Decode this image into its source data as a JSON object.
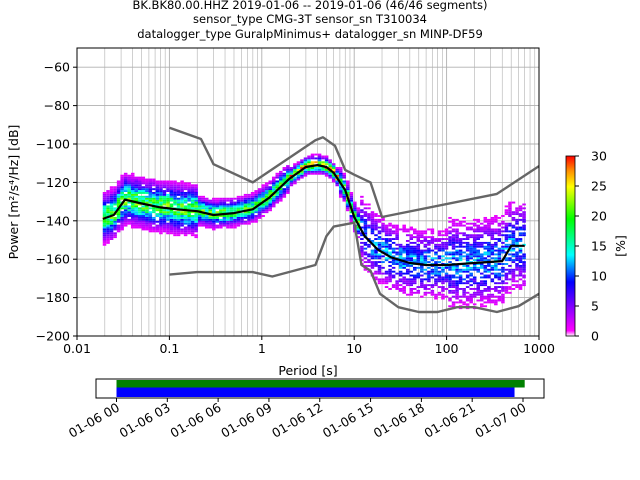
{
  "title_lines": [
    "BK.BK80.00.HHZ   2019-01-06 -- 2019-01-06  (46/46 segments)",
    "sensor_type CMG-3T sensor_sn T310034",
    "datalogger_type GuralpMinimus+ datalogger_sn MINP-DF59"
  ],
  "chart_data": [
    {
      "type": "heatmap",
      "xlabel": "Period [s]",
      "ylabel": "Power [m²/s⁴/Hz] [dB]",
      "xscale": "log",
      "xlim": [
        0.01,
        1000
      ],
      "ylim": [
        -200,
        -50
      ],
      "x_ticks": [
        0.01,
        0.1,
        1,
        10,
        100,
        1000
      ],
      "x_tick_labels": [
        "0.01",
        "0.1",
        "1",
        "10",
        "100",
        "1000"
      ],
      "y_ticks": [
        -200,
        -180,
        -160,
        -140,
        -120,
        -100,
        -80,
        -60
      ],
      "y_tick_labels": [
        "−200",
        "−180",
        "−160",
        "−140",
        "−120",
        "−100",
        "−80",
        "−60"
      ],
      "grid": true,
      "colorbar": {
        "label": "[%]",
        "range": [
          0,
          30
        ],
        "ticks": [
          0,
          5,
          10,
          15,
          20,
          25,
          30
        ],
        "colormap": "pqlx (white-magenta-blue-cyan-green-yellow-orange-red)"
      },
      "series": [
        {
          "color": "#666666",
          "x": [
            0.1,
            0.22,
            0.3,
            0.8,
            3.8,
            4.6,
            6.2,
            8.0,
            10.0,
            15.0,
            20.0,
            350,
            1000
          ],
          "y": [
            -91.5,
            -97.4,
            -110.5,
            -120,
            -98,
            -96.5,
            -101,
            -113.5,
            -116,
            -120,
            -138,
            -126,
            -111.5
          ]
        },
        {
          "color": "#666666",
          "x": [
            0.1,
            0.2,
            0.8,
            1.3,
            3.8,
            5.0,
            6.0,
            10.0,
            12.0,
            15.0,
            19.0,
            30.0,
            50.0,
            80.0,
            130,
            200,
            350,
            600,
            1000
          ],
          "y": [
            -168,
            -166.7,
            -166.7,
            -169,
            -163,
            -148,
            -143,
            -141,
            -163,
            -166,
            -178,
            -185,
            -187.5,
            -187.5,
            -185,
            -185,
            -187.5,
            -184.5,
            -178
          ]
        },
        {
          "color": "#000000",
          "x": [
            0.019,
            0.025,
            0.033,
            0.05,
            0.08,
            0.12,
            0.2,
            0.3,
            0.5,
            0.8,
            1.2,
            2.0,
            3.0,
            4.0,
            5.0,
            6.0,
            8.0,
            10.0,
            13.0,
            18.0,
            25.0,
            40.0,
            60.0,
            100,
            200,
            400,
            500,
            700
          ],
          "y": [
            -139,
            -137,
            -129,
            -131,
            -133,
            -134,
            -135,
            -137,
            -136,
            -134,
            -128,
            -118,
            -112,
            -111,
            -112,
            -115,
            -124,
            -138,
            -148,
            -155,
            -159,
            -162,
            -163,
            -163,
            -162,
            -161,
            -153,
            -153
          ]
        }
      ]
    },
    {
      "type": "bar",
      "x_tick_labels": [
        "01-06 00",
        "01-06 03",
        "01-06 06",
        "01-06 09",
        "01-06 12",
        "01-06 15",
        "01-06 18",
        "01-06 21",
        "01-07 00"
      ],
      "series": [
        {
          "color": "#008000",
          "start": 0.0,
          "end": 24.1
        },
        {
          "color": "#0000ff",
          "start": 0.0,
          "end": 23.5
        }
      ]
    }
  ]
}
